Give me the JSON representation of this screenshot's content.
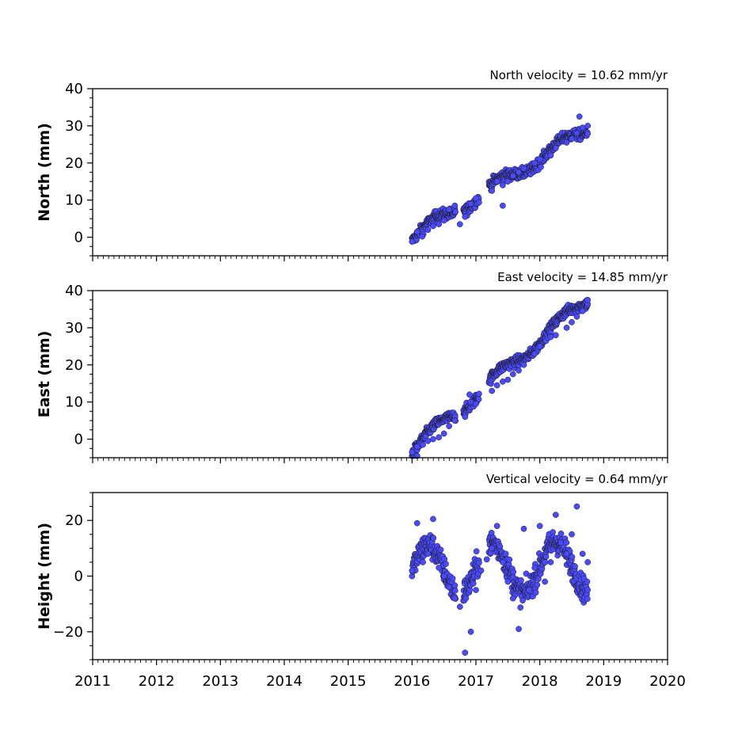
{
  "chart_data": [
    {
      "type": "scatter",
      "title": "North velocity = 10.62 mm/yr",
      "ylabel": "North (mm)",
      "xlim": [
        2011,
        2020
      ],
      "ylim": [
        -5,
        40
      ],
      "y_ticks": [
        0,
        10,
        20,
        30,
        40
      ],
      "y_tick_labels": [
        "0",
        "10",
        "20",
        "30",
        "40"
      ],
      "marker_color": "#4a4aff",
      "data_extent": {
        "x": [
          2016.0,
          2018.75
        ],
        "y": [
          -2,
          32.5
        ]
      },
      "trend": {
        "rate_mm_per_yr": 10.62,
        "start_year": 2016.0,
        "start_value": 0
      },
      "series": [
        {
          "points": [
            [
              2016.0,
              -1.2
            ],
            [
              2016.08,
              1.5
            ],
            [
              2016.16,
              0.2
            ],
            [
              2016.25,
              2.0
            ],
            [
              2016.33,
              3.0
            ],
            [
              2016.42,
              3.5
            ],
            [
              2016.5,
              4.5
            ],
            [
              2016.58,
              7.5
            ],
            [
              2016.67,
              8.5
            ],
            [
              2016.83,
              5.5
            ],
            [
              2016.92,
              9.0
            ],
            [
              2017.0,
              10.5
            ],
            [
              2017.25,
              12.5
            ],
            [
              2017.33,
              15.0
            ],
            [
              2017.42,
              14.0
            ],
            [
              2017.5,
              15.0
            ],
            [
              2017.58,
              16.5
            ],
            [
              2017.67,
              17.5
            ],
            [
              2017.75,
              18.5
            ],
            [
              2017.92,
              20.0
            ],
            [
              2018.0,
              21.0
            ],
            [
              2018.17,
              22.0
            ],
            [
              2018.25,
              24.0
            ],
            [
              2018.42,
              25.5
            ],
            [
              2018.5,
              26.5
            ],
            [
              2018.58,
              28.0
            ],
            [
              2018.67,
              29.5
            ],
            [
              2018.75,
              30.0
            ],
            [
              2018.62,
              32.5
            ],
            [
              2016.75,
              3.5
            ],
            [
              2017.42,
              8.5
            ]
          ]
        }
      ]
    },
    {
      "type": "scatter",
      "title": "East velocity = 14.85 mm/yr",
      "ylabel": "East (mm)",
      "xlim": [
        2011,
        2020
      ],
      "ylim": [
        -5,
        40
      ],
      "y_ticks": [
        0,
        10,
        20,
        30,
        40
      ],
      "y_tick_labels": [
        "0",
        "10",
        "20",
        "30",
        "40"
      ],
      "marker_color": "#4a4aff",
      "data_extent": {
        "x": [
          2016.0,
          2018.75
        ],
        "y": [
          -4.5,
          37.5
        ]
      },
      "trend": {
        "rate_mm_per_yr": 14.85,
        "start_year": 2016.0,
        "start_value": -3
      },
      "series": [
        {
          "points": [
            [
              2016.0,
              -3.5
            ],
            [
              2016.08,
              -2.0
            ],
            [
              2016.17,
              -1.5
            ],
            [
              2016.25,
              -0.5
            ],
            [
              2016.33,
              0.0
            ],
            [
              2016.42,
              0.5
            ],
            [
              2016.5,
              1.5
            ],
            [
              2016.58,
              3.5
            ],
            [
              2016.67,
              5.0
            ],
            [
              2016.83,
              6.0
            ],
            [
              2016.92,
              10.0
            ],
            [
              2017.0,
              9.5
            ],
            [
              2017.25,
              13.0
            ],
            [
              2017.33,
              14.5
            ],
            [
              2017.42,
              15.5
            ],
            [
              2017.5,
              16.0
            ],
            [
              2017.58,
              17.5
            ],
            [
              2017.67,
              18.5
            ],
            [
              2017.75,
              20.0
            ],
            [
              2017.92,
              23.0
            ],
            [
              2018.0,
              25.0
            ],
            [
              2018.17,
              27.5
            ],
            [
              2018.25,
              28.0
            ],
            [
              2018.42,
              30.0
            ],
            [
              2018.5,
              31.5
            ],
            [
              2018.58,
              33.0
            ],
            [
              2018.67,
              34.5
            ],
            [
              2018.75,
              37.5
            ],
            [
              2016.08,
              -4.5
            ],
            [
              2016.9,
              12.0
            ]
          ]
        }
      ]
    },
    {
      "type": "scatter",
      "title": "Vertical velocity = 0.64 mm/yr",
      "ylabel": "Height (mm)",
      "xlabel": "",
      "xlim": [
        2011,
        2020
      ],
      "ylim": [
        -30,
        30
      ],
      "y_ticks": [
        -20,
        0,
        20
      ],
      "y_tick_labels": [
        "−20",
        "0",
        "20"
      ],
      "x_ticks": [
        2011,
        2012,
        2013,
        2014,
        2015,
        2016,
        2017,
        2018,
        2019,
        2020
      ],
      "x_tick_labels": [
        "2011",
        "2012",
        "2013",
        "2014",
        "2015",
        "2016",
        "2017",
        "2018",
        "2019",
        "2020"
      ],
      "marker_color": "#4a4aff",
      "data_extent": {
        "x": [
          2016.0,
          2018.75
        ],
        "y": [
          -27.5,
          25
        ]
      },
      "trend": {
        "rate_mm_per_yr": 0.64,
        "start_year": 2016.0,
        "start_value": 2
      },
      "series": [
        {
          "points": [
            [
              2016.0,
              2.0
            ],
            [
              2016.08,
              19.0
            ],
            [
              2016.17,
              5.0
            ],
            [
              2016.25,
              8.0
            ],
            [
              2016.33,
              20.5
            ],
            [
              2016.42,
              3.0
            ],
            [
              2016.5,
              0.0
            ],
            [
              2016.58,
              -4.0
            ],
            [
              2016.67,
              -8.0
            ],
            [
              2016.75,
              -11.0
            ],
            [
              2016.83,
              -27.5
            ],
            [
              2016.92,
              -20.0
            ],
            [
              2017.0,
              -5.0
            ],
            [
              2017.08,
              2.0
            ],
            [
              2017.17,
              6.0
            ],
            [
              2017.25,
              10.0
            ],
            [
              2017.33,
              18.0
            ],
            [
              2017.42,
              5.0
            ],
            [
              2017.5,
              -2.0
            ],
            [
              2017.58,
              -8.0
            ],
            [
              2017.67,
              -19.0
            ],
            [
              2017.75,
              17.0
            ],
            [
              2017.83,
              -5.0
            ],
            [
              2017.92,
              3.0
            ],
            [
              2018.0,
              18.0
            ],
            [
              2018.08,
              -2.0
            ],
            [
              2018.17,
              5.0
            ],
            [
              2018.25,
              22.0
            ],
            [
              2018.33,
              12.0
            ],
            [
              2018.42,
              8.0
            ],
            [
              2018.5,
              15.0
            ],
            [
              2018.58,
              25.0
            ],
            [
              2018.67,
              8.0
            ],
            [
              2018.75,
              5.0
            ]
          ]
        }
      ]
    }
  ]
}
